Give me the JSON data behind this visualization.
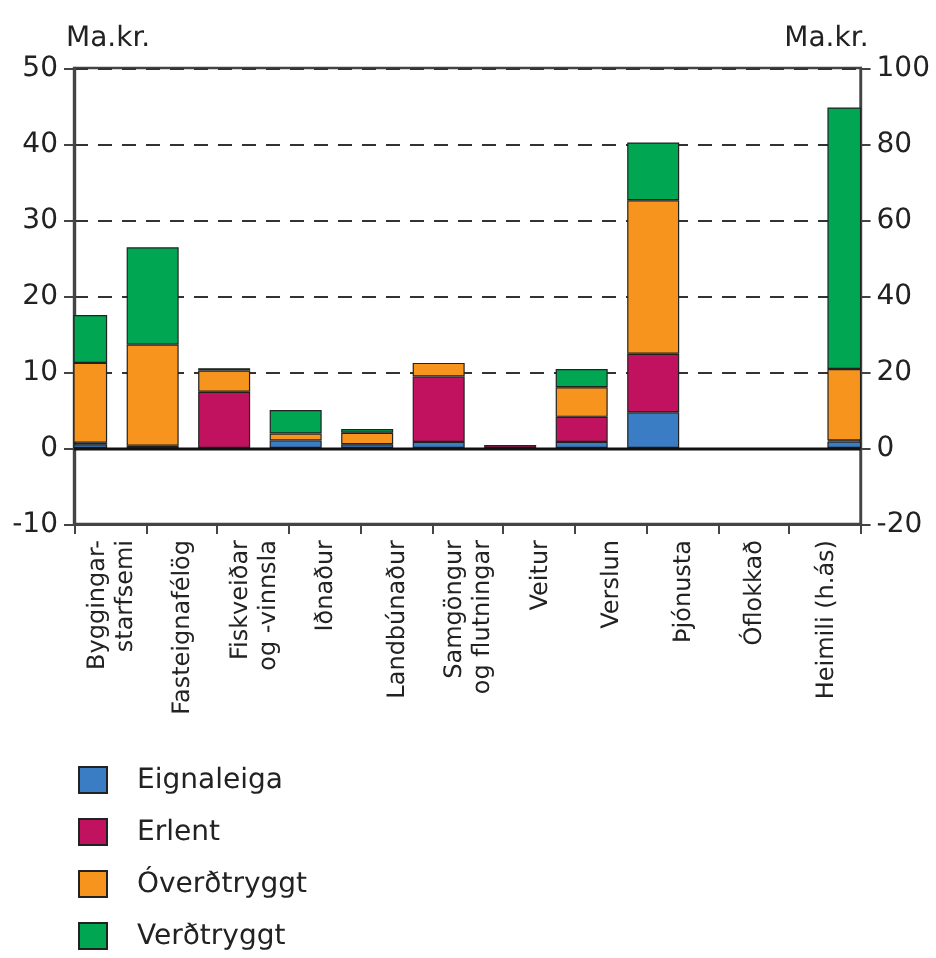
{
  "chart_data": {
    "type": "bar",
    "stacked": true,
    "ylabel": "Ma.kr.",
    "y2label": "Ma.kr.",
    "categories": [
      "Byggingar-\nstarfsemi",
      "Fasteignafélög",
      "Fiskveiðar\nog -vinnsla",
      "Iðnaður",
      "Landbúnaður",
      "Samgöngur\nog flutningar",
      "Veitur",
      "Verslun",
      "Þjónusta",
      "Óflokkað",
      "Heimili (h.ás)"
    ],
    "series": [
      {
        "name": "Eignaleiga",
        "color": "#3a7dc4",
        "values": [
          0.5,
          null,
          null,
          1.0,
          0.5,
          0.8,
          null,
          0.8,
          4.7,
          null,
          null
        ]
      },
      {
        "name": "Erlent",
        "color": "#c0125e",
        "values": [
          0.2,
          0.3,
          7.4,
          null,
          null,
          8.6,
          0.4,
          3.3,
          7.7,
          null,
          null
        ]
      },
      {
        "name": "Óverðtryggt",
        "color": "#f7941d",
        "values": [
          10.5,
          13.3,
          2.8,
          0.9,
          1.5,
          1.8,
          null,
          3.9,
          20.2,
          null,
          null
        ]
      },
      {
        "name": "Verðtryggt",
        "color": "#00a651",
        "values": [
          6.3,
          12.8,
          0.3,
          3.1,
          0.5,
          null,
          null,
          2.4,
          7.6,
          null,
          null
        ]
      },
      {
        "color": "#3a7dc4",
        "axis": "y2",
        "values": [
          null,
          null,
          null,
          null,
          null,
          null,
          null,
          null,
          null,
          null,
          1.7
        ]
      },
      {
        "color": "#c0125e",
        "axis": "y2",
        "values": [
          null,
          null,
          null,
          null,
          null,
          null,
          null,
          null,
          null,
          null,
          0.3
        ]
      },
      {
        "color": "#f7941d",
        "axis": "y2",
        "values": [
          null,
          null,
          null,
          null,
          null,
          null,
          null,
          null,
          null,
          null,
          18.8
        ]
      },
      {
        "color": "#00a651",
        "axis": "y2",
        "values": [
          null,
          null,
          null,
          null,
          null,
          null,
          null,
          null,
          null,
          null,
          68.8
        ]
      }
    ],
    "ylim": [
      -10,
      50
    ],
    "yticks": [
      -10,
      0,
      10,
      20,
      30,
      40,
      50
    ],
    "y2lim": [
      -20,
      100
    ],
    "y2ticks": [
      -20,
      0,
      20,
      40,
      60,
      80,
      100
    ],
    "grid": "y",
    "legend": "bottom left"
  }
}
